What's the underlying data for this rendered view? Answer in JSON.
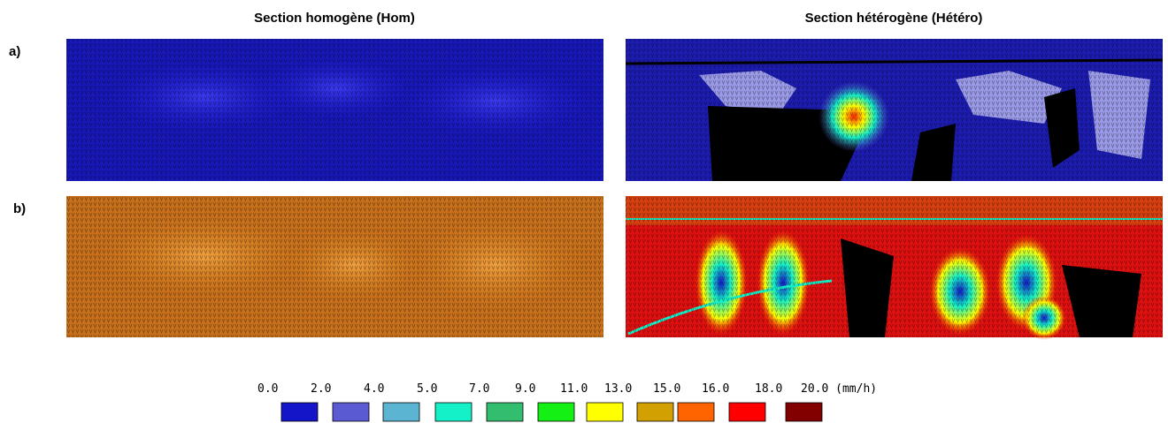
{
  "header": {
    "left_title": "Section homogène (Hom)",
    "right_title": "Section hétérogène (Hétéro)"
  },
  "rows": [
    {
      "label": "a)"
    },
    {
      "label": "b)"
    }
  ],
  "legend": {
    "labels": [
      "0.0",
      "2.0",
      "4.0",
      "5.0",
      "7.0",
      "9.0",
      "11.0",
      "13.0",
      "15.0",
      "16.0",
      "18.0",
      "20.0 (mm/h)"
    ],
    "colors": [
      "#1414c8",
      "#5a5ad2",
      "#5ab4d2",
      "#14f0c8",
      "#32be6e",
      "#14f014",
      "#ffff00",
      "#d2a000",
      "#ff6400",
      "#ff0000",
      "#820000"
    ]
  }
}
